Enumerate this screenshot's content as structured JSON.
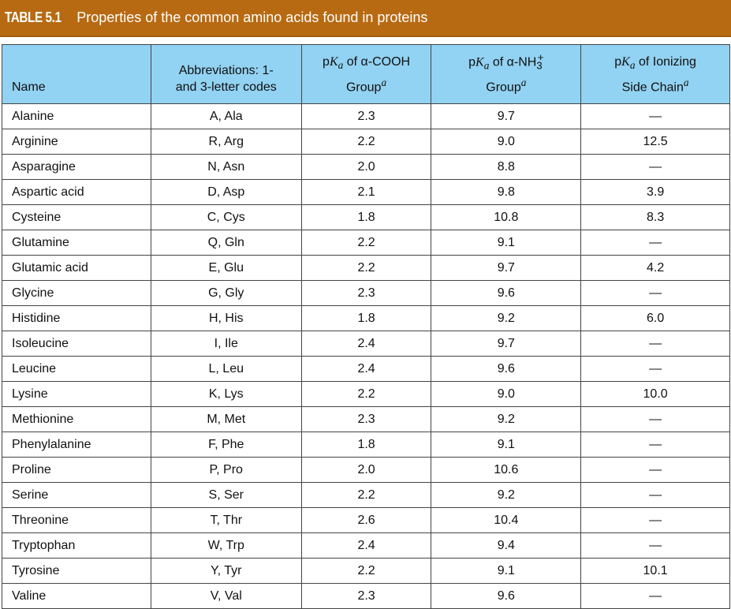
{
  "title": {
    "label": "TABLE 5.1",
    "text": "Properties of the common amino acids found in proteins"
  },
  "headers": {
    "name": "Name",
    "abbr_line1": "Abbreviations: 1-",
    "abbr_line2": "and 3-letter codes",
    "pk": "p",
    "K": "K",
    "a": "a",
    "cooh_rest": " of α-COOH",
    "group": "Group",
    "sup_a": "a",
    "nh_rest": " of α-NH",
    "nh_sub": "3",
    "nh_sup": "+",
    "side_rest": " of Ionizing",
    "side_line2": "Side Chain"
  },
  "rows": [
    [
      "Alanine",
      "A, Ala",
      "2.3",
      "9.7",
      "—"
    ],
    [
      "Arginine",
      "R, Arg",
      "2.2",
      "9.0",
      "12.5"
    ],
    [
      "Asparagine",
      "N, Asn",
      "2.0",
      "8.8",
      "—"
    ],
    [
      "Aspartic acid",
      "D, Asp",
      "2.1",
      "9.8",
      "3.9"
    ],
    [
      "Cysteine",
      "C, Cys",
      "1.8",
      "10.8",
      "8.3"
    ],
    [
      "Glutamine",
      "Q, Gln",
      "2.2",
      "9.1",
      "—"
    ],
    [
      "Glutamic acid",
      "E, Glu",
      "2.2",
      "9.7",
      "4.2"
    ],
    [
      "Glycine",
      "G, Gly",
      "2.3",
      "9.6",
      "—"
    ],
    [
      "Histidine",
      "H, His",
      "1.8",
      "9.2",
      "6.0"
    ],
    [
      "Isoleucine",
      "I, Ile",
      "2.4",
      "9.7",
      "—"
    ],
    [
      "Leucine",
      "L, Leu",
      "2.4",
      "9.6",
      "—"
    ],
    [
      "Lysine",
      "K, Lys",
      "2.2",
      "9.0",
      "10.0"
    ],
    [
      "Methionine",
      "M, Met",
      "2.3",
      "9.2",
      "—"
    ],
    [
      "Phenylalanine",
      "F, Phe",
      "1.8",
      "9.1",
      "—"
    ],
    [
      "Proline",
      "P, Pro",
      "2.0",
      "10.6",
      "—"
    ],
    [
      "Serine",
      "S, Ser",
      "2.2",
      "9.2",
      "—"
    ],
    [
      "Threonine",
      "T, Thr",
      "2.6",
      "10.4",
      "—"
    ],
    [
      "Tryptophan",
      "W, Trp",
      "2.4",
      "9.4",
      "—"
    ],
    [
      "Tyrosine",
      "Y, Tyr",
      "2.2",
      "9.1",
      "10.1"
    ],
    [
      "Valine",
      "V, Val",
      "2.3",
      "9.6",
      "—"
    ]
  ]
}
